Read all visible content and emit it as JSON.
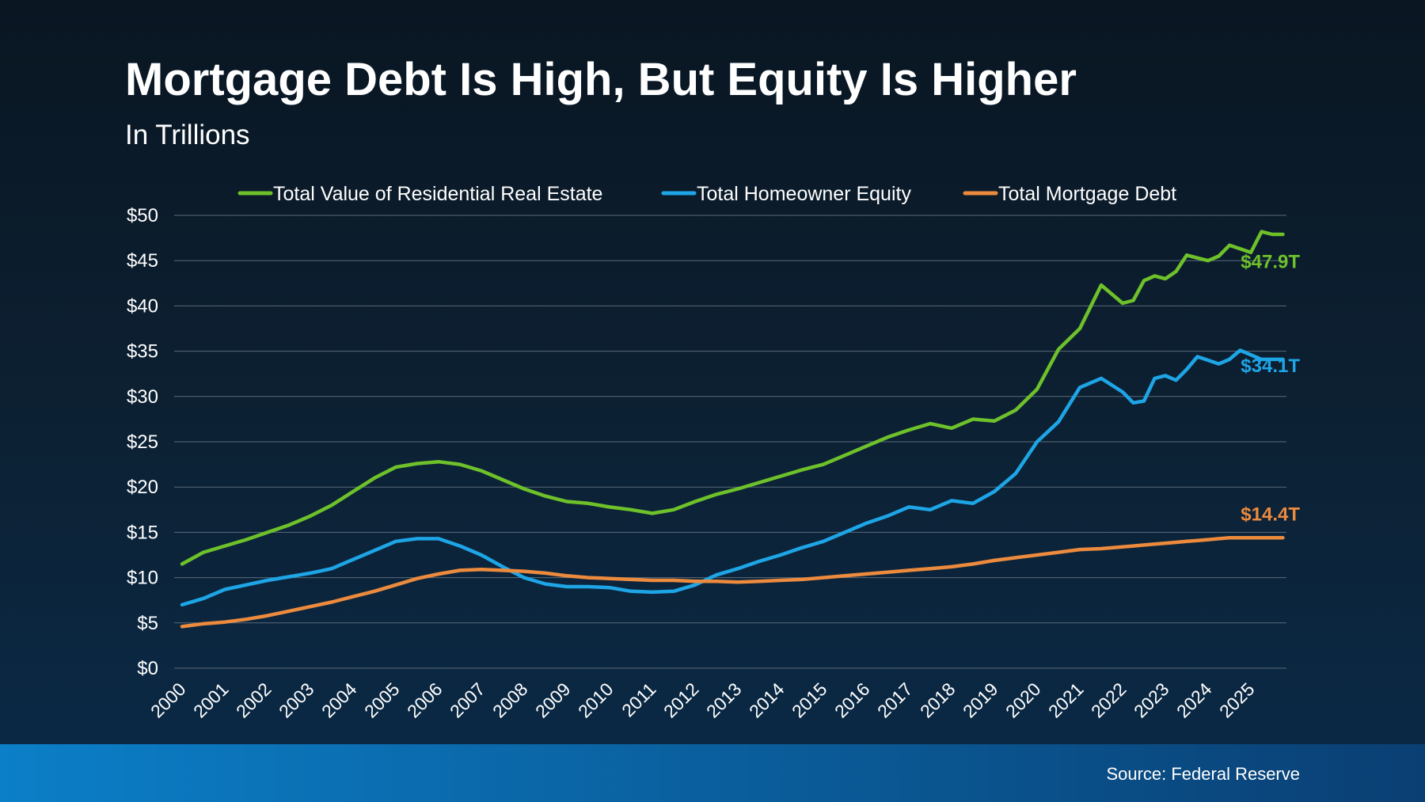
{
  "title": "Mortgage Debt Is High, But Equity Is Higher",
  "subtitle": "In Trillions",
  "source": "Source: Federal Reserve",
  "colors": {
    "green": "#6ec12a",
    "blue": "#1ea5e6",
    "orange": "#ec8a3d",
    "footer": "#0b7fc8"
  },
  "chart_data": {
    "type": "line",
    "title": "Mortgage Debt Is High, But Equity Is Higher",
    "subtitle": "In Trillions",
    "ylim": [
      0,
      50
    ],
    "xlim": [
      2000,
      2025.9
    ],
    "grid": true,
    "legend_position": "top",
    "yticks": [
      "$0",
      "$5",
      "$10",
      "$15",
      "$20",
      "$25",
      "$30",
      "$35",
      "$40",
      "$45",
      "$50"
    ],
    "xticks": [
      "2000",
      "2001",
      "2002",
      "2003",
      "2004",
      "2005",
      "2006",
      "2007",
      "2008",
      "2009",
      "2010",
      "2011",
      "2012",
      "2013",
      "2014",
      "2015",
      "2016",
      "2017",
      "2018",
      "2019",
      "2020",
      "2021",
      "2022",
      "2023",
      "2024",
      "2025"
    ],
    "x": [
      2000,
      2000.5,
      2001,
      2001.5,
      2002,
      2002.5,
      2003,
      2003.5,
      2004,
      2004.5,
      2005,
      2005.5,
      2006,
      2006.5,
      2007,
      2007.5,
      2008,
      2008.5,
      2009,
      2009.5,
      2010,
      2010.5,
      2011,
      2011.5,
      2012,
      2012.5,
      2013,
      2013.5,
      2014,
      2014.5,
      2015,
      2015.5,
      2016,
      2016.5,
      2017,
      2017.5,
      2018,
      2018.5,
      2019,
      2019.5,
      2020,
      2020.5,
      2021,
      2021.5,
      2022,
      2022.25,
      2022.5,
      2022.75,
      2023,
      2023.25,
      2023.5,
      2023.75,
      2024,
      2024.25,
      2024.5,
      2024.75,
      2025,
      2025.25,
      2025.5,
      2025.75
    ],
    "series": [
      {
        "name": "Total Value of Residential Real Estate",
        "color": "#6ec12a",
        "end_label": "$47.9T",
        "values": [
          11.5,
          12.8,
          13.5,
          14.2,
          15.0,
          15.8,
          16.8,
          18.0,
          19.5,
          21.0,
          22.2,
          22.6,
          22.8,
          22.5,
          21.8,
          20.8,
          19.8,
          19.0,
          18.4,
          18.2,
          17.8,
          17.5,
          17.1,
          17.5,
          18.4,
          19.2,
          19.8,
          20.5,
          21.2,
          21.9,
          22.5,
          23.5,
          24.5,
          25.5,
          26.3,
          27.0,
          26.5,
          27.5,
          27.3,
          28.5,
          30.8,
          35.2,
          37.5,
          42.3,
          40.3,
          40.6,
          42.8,
          43.3,
          43.0,
          43.8,
          45.6,
          45.3,
          45.0,
          45.5,
          46.7,
          46.3,
          45.9,
          48.2,
          47.9,
          47.9
        ]
      },
      {
        "name": "Total Homeowner Equity",
        "color": "#1ea5e6",
        "end_label": "$34.1T",
        "values": [
          7.0,
          7.7,
          8.7,
          9.2,
          9.7,
          10.1,
          10.5,
          11.0,
          12.0,
          13.0,
          14.0,
          14.3,
          14.3,
          13.5,
          12.5,
          11.2,
          10.0,
          9.3,
          9.0,
          9.0,
          8.9,
          8.5,
          8.4,
          8.5,
          9.2,
          10.3,
          11.0,
          11.8,
          12.5,
          13.3,
          14.0,
          15.0,
          16.0,
          16.8,
          17.8,
          17.5,
          18.5,
          18.2,
          19.5,
          21.5,
          25.0,
          27.2,
          31.0,
          32.0,
          30.5,
          29.3,
          29.5,
          32.0,
          32.3,
          31.8,
          33.0,
          34.4,
          34.0,
          33.6,
          34.1,
          35.1,
          34.6,
          34.1,
          34.1,
          34.1
        ]
      },
      {
        "name": "Total Mortgage Debt",
        "color": "#ec8a3d",
        "end_label": "$14.4T",
        "values": [
          4.6,
          4.9,
          5.1,
          5.4,
          5.8,
          6.3,
          6.8,
          7.3,
          7.9,
          8.5,
          9.2,
          9.9,
          10.4,
          10.8,
          10.9,
          10.8,
          10.7,
          10.5,
          10.2,
          10.0,
          9.9,
          9.8,
          9.7,
          9.7,
          9.6,
          9.6,
          9.5,
          9.6,
          9.7,
          9.8,
          10.0,
          10.2,
          10.4,
          10.6,
          10.8,
          11.0,
          11.2,
          11.5,
          11.9,
          12.2,
          12.5,
          12.8,
          13.1,
          13.2,
          13.4,
          13.5,
          13.6,
          13.7,
          13.8,
          13.9,
          14.0,
          14.1,
          14.2,
          14.3,
          14.4,
          14.4,
          14.4,
          14.4,
          14.4,
          14.4
        ]
      }
    ]
  }
}
